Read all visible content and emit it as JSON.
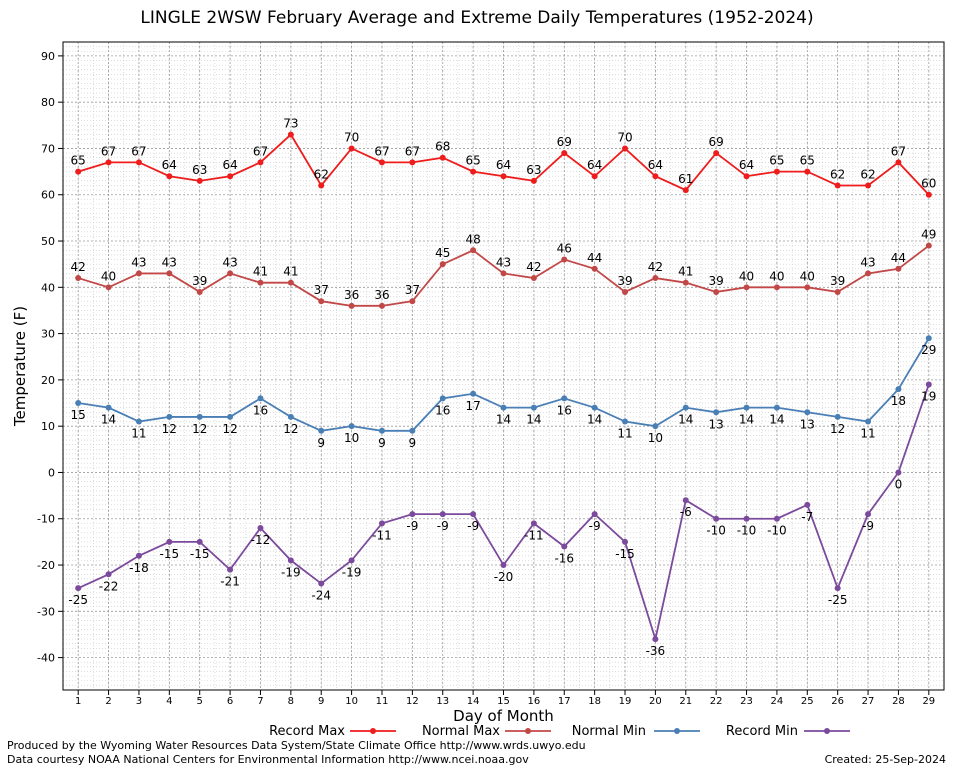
{
  "chart_data": {
    "type": "line",
    "title": "LINGLE 2WSW February Average and Extreme Daily Temperatures (1952-2024)",
    "xlabel": "Day of Month",
    "ylabel": "Temperature (F)",
    "ylim": [
      -47,
      93
    ],
    "yticks": [
      -40,
      -30,
      -20,
      -10,
      0,
      10,
      20,
      30,
      40,
      50,
      60,
      70,
      80,
      90
    ],
    "xlim": [
      0.5,
      29.5
    ],
    "x": [
      1,
      2,
      3,
      4,
      5,
      6,
      7,
      8,
      9,
      10,
      11,
      12,
      13,
      14,
      15,
      16,
      17,
      18,
      19,
      20,
      21,
      22,
      23,
      24,
      25,
      26,
      27,
      28,
      29
    ],
    "grid": true,
    "legend_position": "bottom",
    "series": [
      {
        "name": "Record Max",
        "color": "#ee1c1c",
        "label_pos": "above",
        "values": [
          65,
          67,
          67,
          64,
          63,
          64,
          67,
          73,
          62,
          70,
          67,
          67,
          68,
          65,
          64,
          63,
          69,
          64,
          70,
          64,
          61,
          69,
          64,
          65,
          65,
          62,
          62,
          67,
          60
        ]
      },
      {
        "name": "Normal Max",
        "color": "#c24848",
        "label_pos": "above",
        "values": [
          42,
          40,
          43,
          43,
          39,
          43,
          41,
          41,
          37,
          36,
          36,
          37,
          45,
          48,
          43,
          42,
          46,
          44,
          39,
          42,
          41,
          39,
          40,
          40,
          40,
          39,
          43,
          44,
          49
        ]
      },
      {
        "name": "Normal Min",
        "color": "#4a7fb5",
        "label_pos": "below",
        "values": [
          15,
          14,
          11,
          12,
          12,
          12,
          16,
          12,
          9,
          10,
          9,
          9,
          16,
          17,
          14,
          14,
          16,
          14,
          11,
          10,
          14,
          13,
          14,
          14,
          13,
          12,
          11,
          18,
          29
        ]
      },
      {
        "name": "Record Min",
        "color": "#7b4a9c",
        "label_pos": "below",
        "values": [
          -25,
          -22,
          -18,
          -15,
          -15,
          -21,
          -12,
          -19,
          -24,
          -19,
          -11,
          -9,
          -9,
          -9,
          -20,
          -11,
          -16,
          -9,
          -15,
          -36,
          -6,
          -10,
          -10,
          -10,
          -7,
          -25,
          -9,
          0,
          19
        ]
      }
    ]
  },
  "footer": {
    "produced_by": "Produced by the Wyoming Water Resources Data System/State Climate Office http://www.wrds.uwyo.edu",
    "courtesy": "Data courtesy NOAA National Centers for Environmental Information http://www.ncei.noaa.gov",
    "created": "Created:  25-Sep-2024"
  }
}
